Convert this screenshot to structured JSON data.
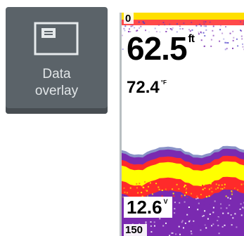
{
  "tile": {
    "icon": "data-overlay-icon",
    "label_line1": "Data",
    "label_line2": "overlay"
  },
  "sonar": {
    "range_top": "0",
    "depth_value": "62.5",
    "depth_unit": "ft",
    "water_temp_value": "72.4",
    "water_temp_unit": "°F",
    "voltage_value": "12.6",
    "voltage_unit": "V",
    "range_bottom": "150",
    "colors": {
      "strong": "#ffff00",
      "mid": "#ff2a2a",
      "weak": "#7a2ab0",
      "noise": "#4a3cc8",
      "surface": "#ffe000",
      "border": "#b9bfc2"
    }
  }
}
